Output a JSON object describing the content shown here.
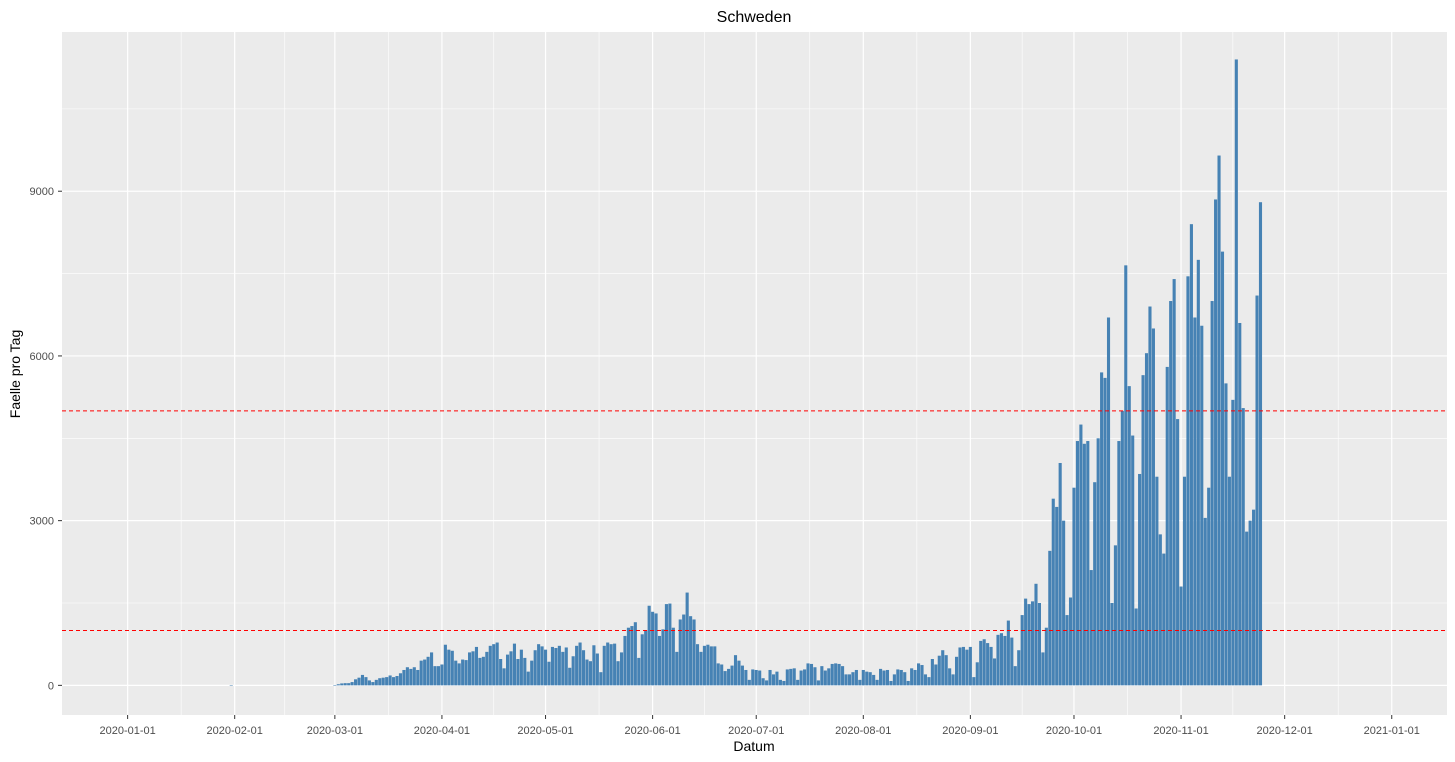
{
  "chart_data": {
    "type": "bar",
    "title": "Schweden",
    "xlabel": "Datum",
    "ylabel": "Faelle pro Tag",
    "x_range": [
      "2019-12-13",
      "2021-01-17"
    ],
    "ylim": [
      -540,
      11900
    ],
    "x_ticks": [
      "2020-01-01",
      "2020-02-01",
      "2020-03-01",
      "2020-04-01",
      "2020-05-01",
      "2020-06-01",
      "2020-07-01",
      "2020-08-01",
      "2020-09-01",
      "2020-10-01",
      "2020-11-01",
      "2020-12-01",
      "2021-01-01"
    ],
    "y_ticks": [
      0,
      3000,
      6000,
      9000
    ],
    "grid": true,
    "bar_color": "#4682b4",
    "hlines": [
      {
        "y": 1000,
        "color": "#ff0000",
        "style": "dashed"
      },
      {
        "y": 5000,
        "color": "#ff0000",
        "style": "dashed"
      }
    ],
    "series": [
      {
        "start": "2020-01-01",
        "values": [
          0,
          0,
          0,
          0,
          0,
          0,
          0,
          0,
          0,
          0,
          0,
          0,
          0,
          0,
          0,
          0,
          0,
          0,
          0,
          0,
          0,
          0,
          0,
          0,
          0,
          0,
          0,
          0,
          0,
          0,
          1,
          0,
          0,
          0,
          0,
          0,
          0,
          0,
          0,
          0,
          0,
          0,
          0,
          0,
          0,
          0,
          0,
          0,
          0,
          0,
          0,
          0,
          0,
          0,
          0,
          0,
          0,
          0,
          0,
          0,
          5,
          20,
          35,
          40,
          40,
          60,
          110,
          140,
          190,
          150,
          90,
          60,
          100,
          130,
          140,
          150,
          180,
          150,
          170,
          220,
          280,
          330,
          300,
          330,
          280,
          450,
          470,
          520,
          600,
          350,
          350,
          380,
          740,
          650,
          630,
          450,
          400,
          470,
          460,
          600,
          620,
          700,
          500,
          520,
          610,
          720,
          750,
          780,
          480,
          310,
          560,
          620,
          760,
          480,
          650,
          500,
          250,
          450,
          640,
          750,
          710,
          650,
          430,
          700,
          680,
          720,
          610,
          690,
          320,
          530,
          720,
          780,
          640,
          470,
          440,
          730,
          580,
          240,
          720,
          780,
          750,
          760,
          440,
          600,
          900,
          1050,
          1080,
          1150,
          500,
          930,
          1000,
          1450,
          1340,
          1310,
          900,
          1020,
          1480,
          1490,
          1050,
          610,
          1200,
          1290,
          1690,
          1260,
          1200,
          750,
          610,
          720,
          740,
          710,
          710,
          400,
          380,
          260,
          300,
          360,
          550,
          450,
          360,
          280,
          100,
          290,
          280,
          270,
          130,
          90,
          280,
          200,
          250,
          100,
          80,
          290,
          300,
          310,
          100,
          270,
          290,
          400,
          390,
          330,
          90,
          350,
          270,
          310,
          390,
          400,
          390,
          350,
          200,
          200,
          240,
          280,
          100,
          280,
          250,
          240,
          190,
          100,
          300,
          270,
          280,
          80,
          200,
          290,
          280,
          240,
          80,
          310,
          280,
          400,
          370,
          200,
          150,
          480,
          380,
          540,
          640,
          550,
          310,
          200,
          520,
          690,
          700,
          650,
          700,
          150,
          420,
          810,
          840,
          770,
          700,
          490,
          920,
          950,
          900,
          1180,
          870,
          350,
          640,
          1280,
          1580,
          1480,
          1530,
          1850,
          1500,
          600,
          1050,
          2450,
          3400,
          3250,
          4050,
          3000,
          1280,
          1600,
          3600,
          4450,
          4750,
          4400,
          4450,
          2100,
          3700,
          4500,
          5700,
          5600,
          6700,
          1500,
          2550,
          4450,
          5000,
          7650,
          5450,
          4550,
          1400,
          3850,
          5650,
          6050,
          6900,
          6500,
          3800,
          2750,
          2400,
          5800,
          7000,
          7400,
          4850,
          1800,
          3800,
          7450,
          8400,
          6700,
          7750,
          6550,
          3050,
          3600,
          7000,
          8850,
          9650,
          7900,
          5500,
          3800,
          5200,
          11400,
          6600,
          5050,
          2800,
          3000,
          3200,
          7100,
          8800
        ]
      }
    ]
  }
}
